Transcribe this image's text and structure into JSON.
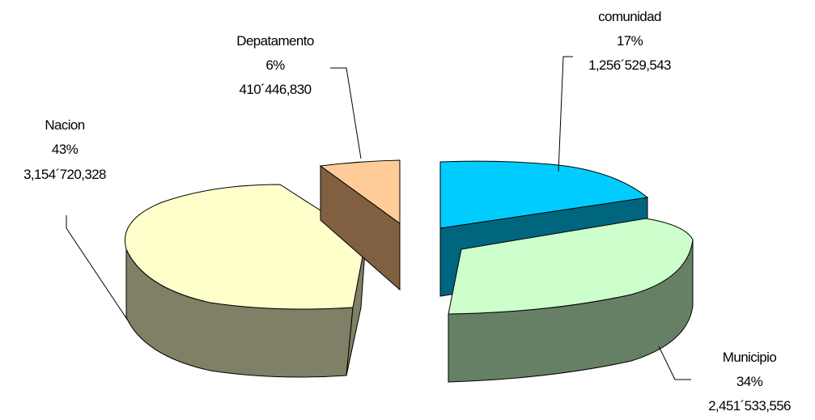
{
  "chart_data": {
    "type": "pie",
    "variant": "3d-exploded",
    "title": "",
    "slices": [
      {
        "name": "comunidad",
        "percent": "17%",
        "value": "1,256´529,543",
        "top_color": "#00ccff",
        "side_color": "#006680"
      },
      {
        "name": "Municipio",
        "percent": "34%",
        "value": "2,451´533,556",
        "top_color": "#ccffcc",
        "side_color": "#668066"
      },
      {
        "name": "Nacion",
        "percent": "43%",
        "value": "3,154´720,328",
        "top_color": "#ffffcc",
        "side_color": "#808066"
      },
      {
        "name": "Depatamento",
        "percent": "6%",
        "value": "410´446,830",
        "top_color": "#ffcc99",
        "side_color": "#806040"
      }
    ]
  }
}
